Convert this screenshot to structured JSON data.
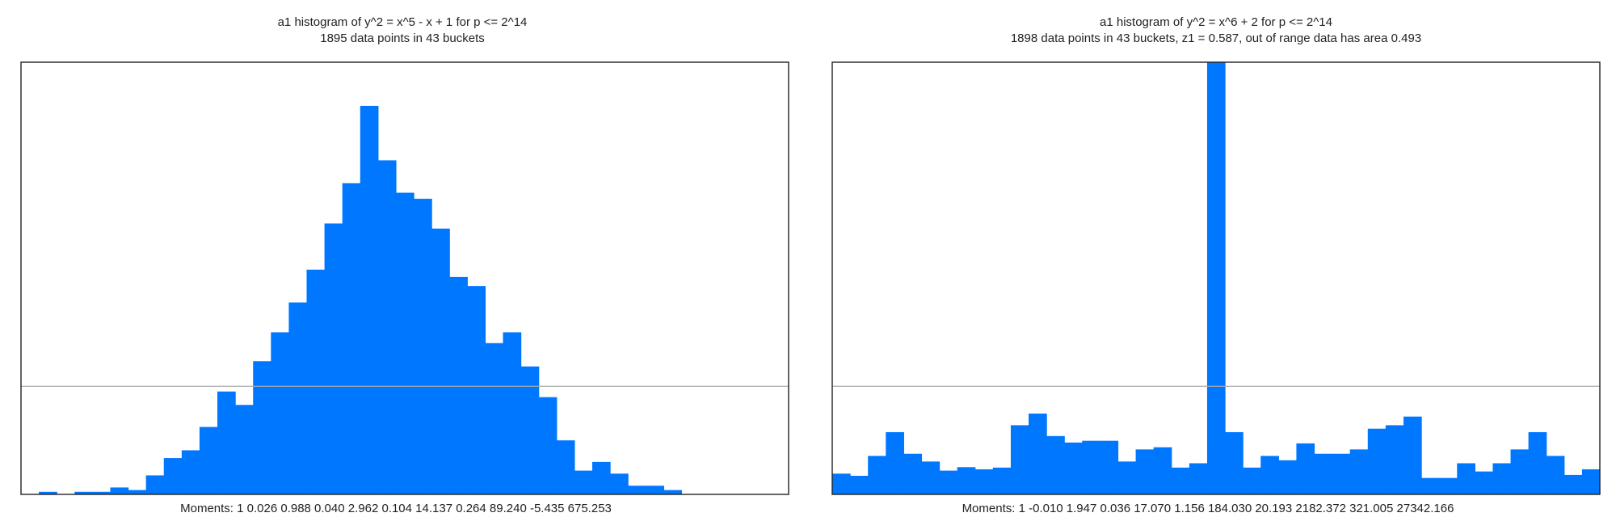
{
  "colors": {
    "bar": "#0077ff",
    "frame": "#222222",
    "reference_line": "#aaaaaa",
    "text": "#222222"
  },
  "chart_data": [
    {
      "type": "bar",
      "title": "a1 histogram of y^2 = x^5 - x + 1 for p <= 2^14",
      "subtitle": "1895 data points in 43 buckets",
      "footer": "Moments: 1   0.026   0.988   0.040   2.962   0.104   14.137   0.264   89.240   -5.435   675.253",
      "ylim": [
        0,
        1.0
      ],
      "reference_y": 0.25,
      "values": [
        0,
        0.006,
        0,
        0.006,
        0.006,
        0.016,
        0.01,
        0.044,
        0.084,
        0.102,
        0.156,
        0.238,
        0.207,
        0.308,
        0.375,
        0.444,
        0.52,
        0.627,
        0.72,
        0.899,
        0.773,
        0.698,
        0.684,
        0.615,
        0.503,
        0.482,
        0.35,
        0.375,
        0.296,
        0.225,
        0.125,
        0.055,
        0.075,
        0.048,
        0.02,
        0.02,
        0.01,
        0,
        0,
        0,
        0,
        0,
        0
      ]
    },
    {
      "type": "bar",
      "title": "a1 histogram of y^2 = x^6 + 2 for p <= 2^14",
      "subtitle": "1898 data points in 43 buckets, z1 = 0.587, out of range data has area 0.493",
      "footer": "Moments: 1   -0.010   1.947   0.036   17.070   1.156   184.030   20.193   2182.372   321.005   27342.166",
      "ylim": [
        0,
        1.0
      ],
      "reference_y": 0.25,
      "values": [
        0.048,
        0.043,
        0.089,
        0.144,
        0.094,
        0.076,
        0.055,
        0.063,
        0.058,
        0.062,
        0.16,
        0.187,
        0.135,
        0.12,
        0.124,
        0.124,
        0.076,
        0.104,
        0.109,
        0.062,
        0.072,
        1.0,
        0.144,
        0.062,
        0.089,
        0.079,
        0.118,
        0.094,
        0.094,
        0.104,
        0.152,
        0.16,
        0.18,
        0.038,
        0.038,
        0.072,
        0.053,
        0.072,
        0.104,
        0.144,
        0.089,
        0.045,
        0.058
      ]
    }
  ]
}
